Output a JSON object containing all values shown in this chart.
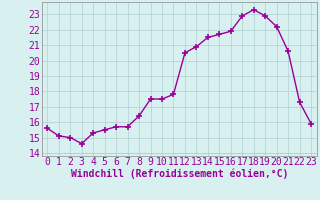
{
  "x": [
    0,
    1,
    2,
    3,
    4,
    5,
    6,
    7,
    8,
    9,
    10,
    11,
    12,
    13,
    14,
    15,
    16,
    17,
    18,
    19,
    20,
    21,
    22,
    23
  ],
  "y": [
    15.6,
    15.1,
    15.0,
    14.6,
    15.3,
    15.5,
    15.7,
    15.7,
    16.4,
    17.5,
    17.5,
    17.8,
    20.5,
    20.9,
    21.5,
    21.7,
    21.9,
    22.9,
    23.3,
    22.9,
    22.2,
    20.6,
    17.3,
    15.9
  ],
  "line_color": "#990099",
  "marker": "+",
  "markersize": 4,
  "linewidth": 1,
  "xlabel": "Windchill (Refroidissement éolien,°C)",
  "xlabel_fontsize": 7,
  "xlim": [
    -0.5,
    23.5
  ],
  "ylim": [
    13.8,
    23.8
  ],
  "yticks": [
    14,
    15,
    16,
    17,
    18,
    19,
    20,
    21,
    22,
    23
  ],
  "xticks": [
    0,
    1,
    2,
    3,
    4,
    5,
    6,
    7,
    8,
    9,
    10,
    11,
    12,
    13,
    14,
    15,
    16,
    17,
    18,
    19,
    20,
    21,
    22,
    23
  ],
  "bg_color": "#d8f0f0",
  "grid_color": "#b0d0d0",
  "tick_fontsize": 7,
  "marker_color": "#990099"
}
